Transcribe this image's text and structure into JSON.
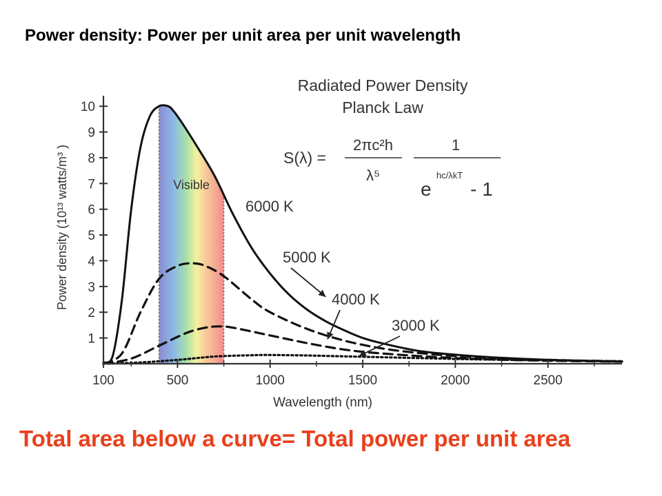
{
  "slide": {
    "heading": "Power density: Power per unit area per unit wavelength",
    "footer": "Total area below a curve= Total power per unit area"
  },
  "colors": {
    "footer": "#e8401c",
    "curve": "#111111",
    "axis": "#333333"
  },
  "chart_data": {
    "type": "line",
    "title": "Radiated Power Density",
    "subtitle": "Planck Law",
    "formula": {
      "lhs": "S(λ) =",
      "numerator_left": "2πc²h",
      "denominator_left": "λ⁵",
      "numerator_right": "1",
      "exponent": "hc/λkT",
      "base": "e",
      "minus": "- 1"
    },
    "xlabel": "Wavelength (nm)",
    "ylabel": "Power density (10¹³ watts/m³ )",
    "xlim": [
      100,
      2900
    ],
    "ylim": [
      0,
      10.3
    ],
    "x_ticks": [
      100,
      500,
      1000,
      1500,
      2000,
      2500
    ],
    "y_ticks": [
      1,
      2,
      3,
      4,
      5,
      6,
      7,
      8,
      9,
      10
    ],
    "visible_band": {
      "label": "Visible",
      "range": [
        400,
        750
      ]
    },
    "series": [
      {
        "name": "6000 K",
        "style": "solid",
        "x": [
          100,
          150,
          200,
          250,
          300,
          350,
          400,
          450,
          480,
          520,
          600,
          700,
          800,
          900,
          1000,
          1100,
          1200,
          1300,
          1400,
          1500,
          1600,
          1800,
          2000,
          2200,
          2400,
          2600,
          2900
        ],
        "y": [
          0.05,
          0.3,
          2.5,
          6.0,
          8.4,
          9.6,
          10.0,
          10.0,
          9.8,
          9.4,
          8.5,
          7.3,
          5.8,
          4.5,
          3.5,
          2.7,
          2.1,
          1.65,
          1.3,
          1.0,
          0.8,
          0.5,
          0.35,
          0.25,
          0.18,
          0.13,
          0.08
        ]
      },
      {
        "name": "5000 K",
        "style": "dashed",
        "x": [
          100,
          200,
          300,
          400,
          500,
          580,
          650,
          750,
          900,
          1000,
          1200,
          1400,
          1600,
          1800,
          2000,
          2200,
          2500,
          2900
        ],
        "y": [
          0.0,
          0.4,
          2.0,
          3.3,
          3.8,
          3.9,
          3.8,
          3.4,
          2.5,
          2.0,
          1.35,
          0.9,
          0.6,
          0.42,
          0.3,
          0.22,
          0.15,
          0.09
        ]
      },
      {
        "name": "4000 K",
        "style": "dashed",
        "x": [
          100,
          250,
          400,
          550,
          650,
          725,
          800,
          1000,
          1200,
          1400,
          1600,
          2000,
          2400,
          2900
        ],
        "y": [
          0.0,
          0.2,
          0.7,
          1.2,
          1.4,
          1.45,
          1.4,
          1.1,
          0.8,
          0.55,
          0.4,
          0.22,
          0.13,
          0.08
        ]
      },
      {
        "name": "3000 K",
        "style": "dotted",
        "x": [
          100,
          300,
          500,
          700,
          900,
          1000,
          1200,
          1500,
          1800,
          2200,
          2900
        ],
        "y": [
          0.0,
          0.05,
          0.15,
          0.28,
          0.33,
          0.34,
          0.32,
          0.27,
          0.22,
          0.16,
          0.1
        ]
      }
    ],
    "annotations": [
      {
        "text": "6000 K",
        "pointer": null
      },
      {
        "text": "5000 K",
        "pointer": [
          1300,
          2.6
        ]
      },
      {
        "text": "4000 K",
        "pointer": [
          1310,
          0.95
        ]
      },
      {
        "text": "3000 K",
        "pointer": [
          1480,
          0.3
        ]
      }
    ]
  }
}
